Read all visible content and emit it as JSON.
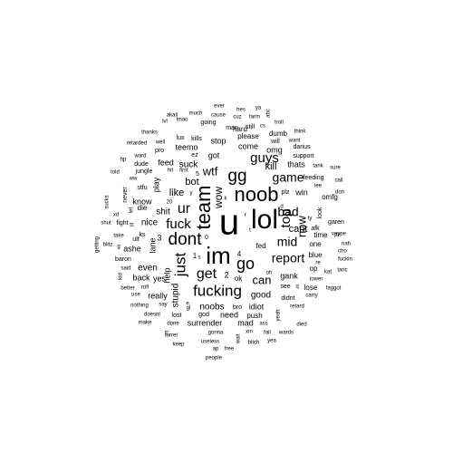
{
  "words": [
    {
      "text": "u",
      "weight": 40,
      "rotate": false
    },
    {
      "text": "lol",
      "weight": 30,
      "rotate": false
    },
    {
      "text": "im",
      "weight": 26,
      "rotate": false
    },
    {
      "text": "noob",
      "weight": 22,
      "rotate": false
    },
    {
      "text": "team",
      "weight": 22,
      "rotate": true
    },
    {
      "text": "dont",
      "weight": 19,
      "rotate": false
    },
    {
      "text": "gg",
      "weight": 19,
      "rotate": false
    },
    {
      "text": "go",
      "weight": 18,
      "rotate": false
    },
    {
      "text": "fucking",
      "weight": 17,
      "rotate": false
    },
    {
      "text": "just",
      "weight": 17,
      "rotate": true
    },
    {
      "text": "get",
      "weight": 16,
      "rotate": false
    },
    {
      "text": "ur",
      "weight": 16,
      "rotate": false
    },
    {
      "text": "fuck",
      "weight": 15,
      "rotate": false
    },
    {
      "text": "top",
      "weight": 15,
      "rotate": true
    },
    {
      "text": "guys",
      "weight": 15,
      "rotate": false
    },
    {
      "text": "bad",
      "weight": 14,
      "rotate": false
    },
    {
      "text": "report",
      "weight": 14,
      "rotate": false
    },
    {
      "text": "game",
      "weight": 14,
      "rotate": false
    },
    {
      "text": "mid",
      "weight": 14,
      "rotate": false
    },
    {
      "text": "wtf",
      "weight": 13,
      "rotate": false
    },
    {
      "text": "can",
      "weight": 13,
      "rotate": false
    },
    {
      "text": "now",
      "weight": 13,
      "rotate": true
    },
    {
      "text": "wow",
      "weight": 12,
      "rotate": true
    },
    {
      "text": "kill",
      "weight": 11,
      "rotate": false
    },
    {
      "text": "cant",
      "weight": 11,
      "rotate": false
    },
    {
      "text": "bot",
      "weight": 11,
      "rotate": false
    },
    {
      "text": "like",
      "weight": 11,
      "rotate": false
    },
    {
      "text": "good",
      "weight": 10,
      "rotate": false
    },
    {
      "text": "shit",
      "weight": 10,
      "rotate": false
    },
    {
      "text": "nice",
      "weight": 10,
      "rotate": false
    },
    {
      "text": "even",
      "weight": 10,
      "rotate": false
    },
    {
      "text": "stupid",
      "weight": 10,
      "rotate": true
    },
    {
      "text": "noobs",
      "weight": 10,
      "rotate": false
    },
    {
      "text": "suck",
      "weight": 10,
      "rotate": false
    },
    {
      "text": "come",
      "weight": 9,
      "rotate": false
    },
    {
      "text": "omg",
      "weight": 9,
      "rotate": false
    },
    {
      "text": "stop",
      "weight": 9,
      "rotate": false
    },
    {
      "text": "got",
      "weight": 9,
      "rotate": false
    },
    {
      "text": "win",
      "weight": 9,
      "rotate": false
    },
    {
      "text": "gank",
      "weight": 9,
      "rotate": false
    },
    {
      "text": "need",
      "weight": 9,
      "rotate": false
    },
    {
      "text": "surrender",
      "weight": 9,
      "rotate": false
    },
    {
      "text": "back",
      "weight": 9,
      "rotate": false
    },
    {
      "text": "help",
      "weight": 9,
      "rotate": true
    },
    {
      "text": "teemo",
      "weight": 9,
      "rotate": false
    },
    {
      "text": "idiot",
      "weight": 9,
      "rotate": false
    },
    {
      "text": "know",
      "weight": 9,
      "rotate": false
    },
    {
      "text": "play",
      "weight": 9,
      "rotate": true
    },
    {
      "text": "feed",
      "weight": 9,
      "rotate": false
    },
    {
      "text": "really",
      "weight": 9,
      "rotate": false
    },
    {
      "text": "thats",
      "weight": 9,
      "rotate": false
    },
    {
      "text": "ashe",
      "weight": 9,
      "rotate": false
    },
    {
      "text": "mad",
      "weight": 9,
      "rotate": false
    },
    {
      "text": "lane",
      "weight": 9,
      "rotate": true
    },
    {
      "text": "yes",
      "weight": 9,
      "rotate": false
    },
    {
      "text": "ok",
      "weight": 8,
      "rotate": false
    },
    {
      "text": "die",
      "weight": 8,
      "rotate": false
    },
    {
      "text": "omfg",
      "weight": 8,
      "rotate": false
    },
    {
      "text": "push",
      "weight": 8,
      "rotate": false
    },
    {
      "text": "please",
      "weight": 8,
      "rotate": false
    },
    {
      "text": "one",
      "weight": 8,
      "rotate": false
    },
    {
      "text": "blue",
      "weight": 8,
      "rotate": false
    },
    {
      "text": "lose",
      "weight": 8,
      "rotate": false
    },
    {
      "text": "fed",
      "weight": 8,
      "rotate": false
    },
    {
      "text": "hard",
      "weight": 8,
      "rotate": false
    },
    {
      "text": "dumb",
      "weight": 8,
      "rotate": false
    },
    {
      "text": "op",
      "weight": 8,
      "rotate": false
    },
    {
      "text": "time",
      "weight": 8,
      "rotate": false
    },
    {
      "text": "stfu",
      "weight": 7,
      "rotate": false
    },
    {
      "text": "kills",
      "weight": 7,
      "rotate": false
    },
    {
      "text": "man",
      "weight": 7,
      "rotate": false
    },
    {
      "text": "still",
      "weight": 7,
      "rotate": false
    },
    {
      "text": "see",
      "weight": 7,
      "rotate": false
    },
    {
      "text": "will",
      "weight": 7,
      "rotate": false
    },
    {
      "text": "ks",
      "weight": 7,
      "rotate": false
    },
    {
      "text": "ez",
      "weight": 7,
      "rotate": false
    },
    {
      "text": "going",
      "weight": 7,
      "rotate": false
    },
    {
      "text": "bro",
      "weight": 7,
      "rotate": false
    },
    {
      "text": "darius",
      "weight": 7,
      "rotate": false
    },
    {
      "text": "plz",
      "weight": 7,
      "rotate": false
    },
    {
      "text": "afk",
      "weight": 7,
      "rotate": false
    },
    {
      "text": "lux",
      "weight": 7,
      "rotate": false
    },
    {
      "text": "god",
      "weight": 7,
      "rotate": false
    },
    {
      "text": "baron",
      "weight": 7,
      "rotate": false
    },
    {
      "text": "jungle",
      "weight": 7,
      "rotate": false
    },
    {
      "text": "fight",
      "weight": 7,
      "rotate": false
    },
    {
      "text": "garen",
      "weight": 7,
      "rotate": false
    },
    {
      "text": "ult",
      "weight": 7,
      "rotate": false
    },
    {
      "text": "pro",
      "weight": 7,
      "rotate": false
    },
    {
      "text": "feeding",
      "weight": 7,
      "rotate": false
    },
    {
      "text": "didnt",
      "weight": 7,
      "rotate": false
    },
    {
      "text": "dude",
      "weight": 7,
      "rotate": false
    },
    {
      "text": "never",
      "weight": 7,
      "rotate": true
    },
    {
      "text": "support",
      "weight": 7,
      "rotate": false
    },
    {
      "text": "look",
      "weight": 7,
      "rotate": true
    },
    {
      "text": "lost",
      "weight": 7,
      "rotate": false
    },
    {
      "text": "first",
      "weight": 6,
      "rotate": false
    },
    {
      "text": "say",
      "weight": 6,
      "rotate": false
    },
    {
      "text": "oh",
      "weight": 6,
      "rotate": false
    },
    {
      "text": "ty",
      "weight": 6,
      "rotate": false
    },
    {
      "text": "retard",
      "weight": 6,
      "rotate": false
    },
    {
      "text": "lee",
      "weight": 6,
      "rotate": false
    },
    {
      "text": "carry",
      "weight": 6,
      "rotate": false
    },
    {
      "text": "gonna",
      "weight": 6,
      "rotate": false
    },
    {
      "text": "rofl",
      "weight": 6,
      "rotate": false
    },
    {
      "text": "said",
      "weight": 6,
      "rotate": false
    },
    {
      "text": "want",
      "weight": 6,
      "rotate": false
    },
    {
      "text": "useless",
      "weight": 6,
      "rotate": false
    },
    {
      "text": "yeah",
      "weight": 6,
      "rotate": true
    },
    {
      "text": "cause",
      "weight": 6,
      "rotate": false
    },
    {
      "text": "ward",
      "weight": 6,
      "rotate": false
    },
    {
      "text": "xin",
      "weight": 6,
      "rotate": false
    },
    {
      "text": "lmao",
      "weight": 6,
      "rotate": false
    },
    {
      "text": "well",
      "weight": 6,
      "rotate": false
    },
    {
      "text": "cuz",
      "weight": 6,
      "rotate": false
    },
    {
      "text": "done",
      "weight": 6,
      "rotate": false
    },
    {
      "text": "use",
      "weight": 6,
      "rotate": false
    },
    {
      "text": "bitch",
      "weight": 6,
      "rotate": false
    },
    {
      "text": "fail",
      "weight": 6,
      "rotate": false
    },
    {
      "text": "ass",
      "weight": 6,
      "rotate": false
    },
    {
      "text": "hit",
      "weight": 6,
      "rotate": false
    },
    {
      "text": "make",
      "weight": 6,
      "rotate": false
    },
    {
      "text": "nothing",
      "weight": 6,
      "rotate": false
    },
    {
      "text": "keep",
      "weight": 6,
      "rotate": false
    },
    {
      "text": "better",
      "weight": 6,
      "rotate": false
    },
    {
      "text": "doesnt",
      "weight": 6,
      "rotate": false
    },
    {
      "text": "turret",
      "weight": 6,
      "rotate": false
    },
    {
      "text": "wards",
      "weight": 6,
      "rotate": false
    },
    {
      "text": "died",
      "weight": 6,
      "rotate": false
    },
    {
      "text": "tower",
      "weight": 6,
      "rotate": false
    },
    {
      "text": "fuckin",
      "weight": 6,
      "rotate": false
    },
    {
      "text": "faggot",
      "weight": 6,
      "rotate": false
    },
    {
      "text": "vayne",
      "weight": 6,
      "rotate": false
    },
    {
      "text": "sure",
      "weight": 6,
      "rotate": false
    },
    {
      "text": "call",
      "weight": 6,
      "rotate": false
    },
    {
      "text": "don",
      "weight": 6,
      "rotate": false
    },
    {
      "text": "pls",
      "weight": 6,
      "rotate": false
    },
    {
      "text": "nah",
      "weight": 6,
      "rotate": false
    },
    {
      "text": "cho",
      "weight": 6,
      "rotate": false
    },
    {
      "text": "taric",
      "weight": 6,
      "rotate": false
    },
    {
      "text": "tank",
      "weight": 6,
      "rotate": false
    },
    {
      "text": "think",
      "weight": 6,
      "rotate": false
    },
    {
      "text": "troll",
      "weight": 6,
      "rotate": false
    },
    {
      "text": "farm",
      "weight": 6,
      "rotate": false
    },
    {
      "text": "hes",
      "weight": 6,
      "rotate": false
    },
    {
      "text": "ya",
      "weight": 6,
      "rotate": false
    },
    {
      "text": "ever",
      "weight": 6,
      "rotate": false
    },
    {
      "text": "much",
      "weight": 6,
      "rotate": false
    },
    {
      "text": "akali",
      "weight": 6,
      "rotate": false
    },
    {
      "text": "lvl",
      "weight": 6,
      "rotate": false
    },
    {
      "text": "thanks",
      "weight": 6,
      "rotate": false
    },
    {
      "text": "retarded",
      "weight": 6,
      "rotate": false
    },
    {
      "text": "hp",
      "weight": 6,
      "rotate": false
    },
    {
      "text": "told",
      "weight": 6,
      "rotate": false
    },
    {
      "text": "ww",
      "weight": 6,
      "rotate": false
    },
    {
      "text": "xd",
      "weight": 6,
      "rotate": false
    },
    {
      "text": "take",
      "weight": 6,
      "rotate": false
    },
    {
      "text": "shut",
      "weight": 6,
      "rotate": false
    },
    {
      "text": "blitz",
      "weight": 6,
      "rotate": false
    },
    {
      "text": "getting",
      "weight": 6,
      "rotate": true
    },
    {
      "text": "sucks",
      "weight": 6,
      "rotate": true
    },
    {
      "text": "kid",
      "weight": 6,
      "rotate": true
    },
    {
      "text": "let",
      "weight": 6,
      "rotate": true
    },
    {
      "text": "ill",
      "weight": 6,
      "rotate": true
    },
    {
      "text": "g",
      "weight": 6,
      "rotate": false
    },
    {
      "text": "re",
      "weight": 6,
      "rotate": false
    },
    {
      "text": "kat",
      "weight": 6,
      "rotate": false
    },
    {
      "text": "ap",
      "weight": 6,
      "rotate": false
    },
    {
      "text": "free",
      "weight": 6,
      "rotate": false
    },
    {
      "text": "people",
      "weight": 6,
      "rotate": false
    },
    {
      "text": "yea",
      "weight": 6,
      "rotate": false
    },
    {
      "text": "wait",
      "weight": 6,
      "rotate": true
    },
    {
      "text": "cs",
      "weight": 6,
      "rotate": false
    },
    {
      "text": "abc",
      "weight": 6,
      "rotate": true
    },
    {
      "text": "q",
      "weight": 6,
      "rotate": false
    },
    {
      "text": "d",
      "weight": 6,
      "rotate": false
    },
    {
      "text": "y",
      "weight": 6,
      "rotate": false
    },
    {
      "text": "0",
      "weight": 7,
      "rotate": false
    },
    {
      "text": "1",
      "weight": 8,
      "rotate": false
    },
    {
      "text": "2",
      "weight": 9,
      "rotate": false
    },
    {
      "text": "3",
      "weight": 9,
      "rotate": false
    },
    {
      "text": "4",
      "weight": 8,
      "rotate": false
    },
    {
      "text": "5",
      "weight": 7,
      "rotate": false
    },
    {
      "text": "20",
      "weight": 6,
      "rotate": false
    },
    {
      "text": "k",
      "weight": 6,
      "rotate": false
    },
    {
      "text": "r",
      "weight": 6,
      "rotate": false
    },
    {
      "text": "e",
      "weight": 6,
      "rotate": false
    },
    {
      "text": "s",
      "weight": 6,
      "rotate": false
    },
    {
      "text": "gl",
      "weight": 6,
      "rotate": false
    },
    {
      "text": "E",
      "weight": 6,
      "rotate": false
    },
    {
      "text": "t",
      "weight": 6,
      "rotate": false
    }
  ]
}
